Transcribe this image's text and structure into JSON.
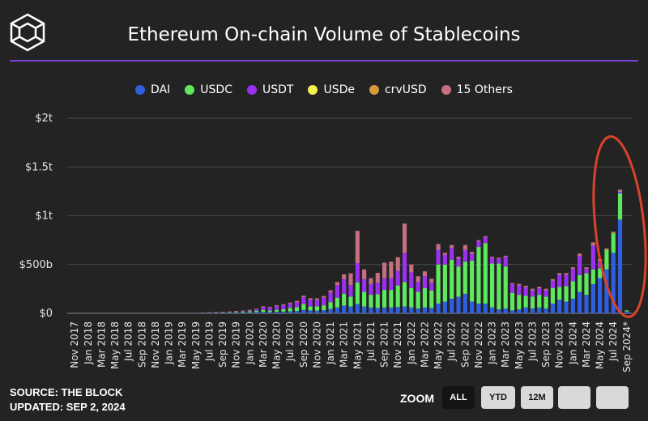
{
  "header": {
    "title": "Ethereum On-chain Volume of Stablecoins",
    "logo": "the-block-cube-logo"
  },
  "footer": {
    "source": "SOURCE: THE BLOCK",
    "updated": "UPDATED: SEP 2, 2024"
  },
  "zoom": {
    "label": "ZOOM",
    "buttons": [
      {
        "label": "ALL",
        "active": true
      },
      {
        "label": "YTD",
        "active": false
      },
      {
        "label": "12M",
        "active": false
      },
      {
        "label": "",
        "active": false
      },
      {
        "label": "",
        "active": false
      }
    ]
  },
  "chart_data": {
    "type": "bar",
    "stacked": true,
    "legend_position": "top-center",
    "grid": true,
    "ylim": [
      0,
      2000000000000
    ],
    "yticks": [
      {
        "value": 0,
        "label": "$0"
      },
      {
        "value": 500000000000,
        "label": "$500b"
      },
      {
        "value": 1000000000000,
        "label": "$1t"
      },
      {
        "value": 1500000000000,
        "label": "$1.5t"
      },
      {
        "value": 2000000000000,
        "label": "$2t"
      }
    ],
    "xtick_labels": [
      "Nov 2017",
      "Jan 2018",
      "Mar 2018",
      "May 2018",
      "Jul 2018",
      "Sep 2018",
      "Nov 2018",
      "Jan 2019",
      "Mar 2019",
      "May 2019",
      "Jul 2019",
      "Sep 2019",
      "Nov 2019",
      "Jan 2020",
      "Mar 2020",
      "May 2020",
      "Jul 2020",
      "Sep 2020",
      "Nov 2020",
      "Jan 2021",
      "Mar 2021",
      "May 2021",
      "Jul 2021",
      "Sep 2021",
      "Nov 2021",
      "Jan 2022",
      "Mar 2022",
      "May 2022",
      "Jul 2022",
      "Sep 2022",
      "Nov 2022",
      "Jan 2023",
      "Mar 2023",
      "May 2023",
      "Jul 2023",
      "Sep 2023",
      "Nov 2023",
      "Jan 2024",
      "Mar 2024",
      "May 2024",
      "Jul 2024",
      "Sep 2024*"
    ],
    "categories": [
      "Nov 2017",
      "Dec 2017",
      "Jan 2018",
      "Feb 2018",
      "Mar 2018",
      "Apr 2018",
      "May 2018",
      "Jun 2018",
      "Jul 2018",
      "Aug 2018",
      "Sep 2018",
      "Oct 2018",
      "Nov 2018",
      "Dec 2018",
      "Jan 2019",
      "Feb 2019",
      "Mar 2019",
      "Apr 2019",
      "May 2019",
      "Jun 2019",
      "Jul 2019",
      "Aug 2019",
      "Sep 2019",
      "Oct 2019",
      "Nov 2019",
      "Dec 2019",
      "Jan 2020",
      "Feb 2020",
      "Mar 2020",
      "Apr 2020",
      "May 2020",
      "Jun 2020",
      "Jul 2020",
      "Aug 2020",
      "Sep 2020",
      "Oct 2020",
      "Nov 2020",
      "Dec 2020",
      "Jan 2021",
      "Feb 2021",
      "Mar 2021",
      "Apr 2021",
      "May 2021",
      "Jun 2021",
      "Jul 2021",
      "Aug 2021",
      "Sep 2021",
      "Oct 2021",
      "Nov 2021",
      "Dec 2021",
      "Jan 2022",
      "Feb 2022",
      "Mar 2022",
      "Apr 2022",
      "May 2022",
      "Jun 2022",
      "Jul 2022",
      "Aug 2022",
      "Sep 2022",
      "Oct 2022",
      "Nov 2022",
      "Dec 2022",
      "Jan 2023",
      "Feb 2023",
      "Mar 2023",
      "Apr 2023",
      "May 2023",
      "Jun 2023",
      "Jul 2023",
      "Aug 2023",
      "Sep 2023",
      "Oct 2023",
      "Nov 2023",
      "Dec 2023",
      "Jan 2024",
      "Feb 2024",
      "Mar 2024",
      "Apr 2024",
      "May 2024",
      "Jun 2024",
      "Jul 2024",
      "Aug 2024",
      "Sep 2024*"
    ],
    "series": [
      {
        "name": "DAI",
        "color": "#2f5fe0",
        "values": [
          0,
          0,
          0,
          0,
          0,
          0,
          0,
          0,
          0,
          0,
          0,
          0,
          0,
          0,
          0,
          0,
          0,
          0,
          0.002,
          0.002,
          0.003,
          0.003,
          0.005,
          0.005,
          0.007,
          0.008,
          0.01,
          0.012,
          0.015,
          0.013,
          0.016,
          0.018,
          0.02,
          0.025,
          0.035,
          0.03,
          0.028,
          0.032,
          0.045,
          0.06,
          0.08,
          0.07,
          0.095,
          0.07,
          0.06,
          0.055,
          0.06,
          0.06,
          0.065,
          0.07,
          0.06,
          0.05,
          0.06,
          0.055,
          0.1,
          0.12,
          0.15,
          0.17,
          0.2,
          0.12,
          0.1,
          0.1,
          0.06,
          0.04,
          0.05,
          0.03,
          0.04,
          0.06,
          0.05,
          0.06,
          0.05,
          0.1,
          0.14,
          0.12,
          0.15,
          0.22,
          0.19,
          0.3,
          0.36,
          0.45,
          0.62,
          0.96,
          0.02
        ]
      },
      {
        "name": "USDC",
        "color": "#5ee85e",
        "values": [
          0,
          0,
          0,
          0,
          0,
          0,
          0,
          0,
          0,
          0,
          0,
          0,
          0,
          0,
          0,
          0,
          0,
          0,
          0.001,
          0.002,
          0.003,
          0.004,
          0.005,
          0.006,
          0.008,
          0.01,
          0.012,
          0.015,
          0.02,
          0.015,
          0.02,
          0.025,
          0.035,
          0.04,
          0.06,
          0.04,
          0.045,
          0.05,
          0.07,
          0.1,
          0.12,
          0.1,
          0.22,
          0.15,
          0.13,
          0.14,
          0.18,
          0.18,
          0.22,
          0.25,
          0.2,
          0.17,
          0.2,
          0.18,
          0.4,
          0.38,
          0.4,
          0.31,
          0.33,
          0.42,
          0.58,
          0.62,
          0.45,
          0.47,
          0.43,
          0.18,
          0.15,
          0.12,
          0.12,
          0.13,
          0.12,
          0.16,
          0.13,
          0.16,
          0.18,
          0.17,
          0.22,
          0.15,
          0.1,
          0.2,
          0.2,
          0.27,
          0.01
        ]
      },
      {
        "name": "USDT",
        "color": "#9b30f0",
        "values": [
          0,
          0,
          0,
          0,
          0,
          0,
          0,
          0,
          0,
          0,
          0,
          0,
          0,
          0,
          0,
          0,
          0,
          0,
          0.001,
          0.002,
          0.002,
          0.003,
          0.004,
          0.005,
          0.006,
          0.007,
          0.01,
          0.015,
          0.03,
          0.03,
          0.04,
          0.04,
          0.045,
          0.05,
          0.07,
          0.07,
          0.065,
          0.08,
          0.1,
          0.13,
          0.15,
          0.12,
          0.2,
          0.13,
          0.11,
          0.12,
          0.12,
          0.12,
          0.15,
          0.3,
          0.16,
          0.1,
          0.12,
          0.08,
          0.15,
          0.1,
          0.12,
          0.08,
          0.12,
          0.07,
          0.06,
          0.06,
          0.06,
          0.05,
          0.1,
          0.09,
          0.1,
          0.09,
          0.07,
          0.07,
          0.07,
          0.08,
          0.13,
          0.12,
          0.13,
          0.2,
          0.05,
          0.25,
          0.08,
          0.0,
          0.0,
          0.02,
          0.0
        ]
      },
      {
        "name": "USDe",
        "color": "#f2f24a",
        "values": [
          0,
          0,
          0,
          0,
          0,
          0,
          0,
          0,
          0,
          0,
          0,
          0,
          0,
          0,
          0,
          0,
          0,
          0,
          0,
          0,
          0,
          0,
          0,
          0,
          0,
          0,
          0,
          0,
          0,
          0,
          0,
          0,
          0,
          0,
          0,
          0,
          0,
          0,
          0,
          0,
          0,
          0,
          0,
          0,
          0,
          0,
          0,
          0,
          0,
          0,
          0,
          0,
          0,
          0,
          0,
          0,
          0,
          0,
          0,
          0,
          0,
          0,
          0,
          0,
          0,
          0,
          0,
          0,
          0,
          0,
          0,
          0,
          0,
          0,
          0,
          0,
          0,
          0.005,
          0.005,
          0.005,
          0.005,
          0.005,
          0
        ]
      },
      {
        "name": "crvUSD",
        "color": "#d69a3a",
        "values": [
          0,
          0,
          0,
          0,
          0,
          0,
          0,
          0,
          0,
          0,
          0,
          0,
          0,
          0,
          0,
          0,
          0,
          0,
          0,
          0,
          0,
          0,
          0,
          0,
          0,
          0,
          0,
          0,
          0,
          0,
          0,
          0,
          0,
          0,
          0,
          0,
          0,
          0,
          0,
          0,
          0,
          0,
          0,
          0,
          0,
          0,
          0,
          0,
          0,
          0,
          0,
          0,
          0,
          0,
          0,
          0,
          0,
          0,
          0,
          0,
          0,
          0,
          0,
          0,
          0,
          0,
          0.002,
          0.002,
          0.002,
          0.002,
          0.002,
          0.002,
          0.002,
          0.002,
          0.002,
          0.002,
          0.002,
          0.002,
          0.002,
          0.002,
          0.002,
          0.002,
          0
        ]
      },
      {
        "name": "15 Others",
        "color": "#c47080",
        "values": [
          0,
          0,
          0,
          0,
          0,
          0,
          0,
          0,
          0,
          0,
          0,
          0,
          0,
          0,
          0,
          0,
          0,
          0,
          0.001,
          0.001,
          0.002,
          0.002,
          0.002,
          0.003,
          0.003,
          0.003,
          0.004,
          0.005,
          0.008,
          0.007,
          0.008,
          0.01,
          0.01,
          0.012,
          0.015,
          0.015,
          0.015,
          0.015,
          0.02,
          0.03,
          0.05,
          0.12,
          0.33,
          0.1,
          0.06,
          0.1,
          0.16,
          0.17,
          0.14,
          0.3,
          0.08,
          0.06,
          0.05,
          0.04,
          0.06,
          0.02,
          0.03,
          0.02,
          0.05,
          0.02,
          0.01,
          0.01,
          0.01,
          0.01,
          0.01,
          0.01,
          0.01,
          0.01,
          0.01,
          0.01,
          0.01,
          0.01,
          0.01,
          0.01,
          0.01,
          0.02,
          0.01,
          0.02,
          0.01,
          0.01,
          0.01,
          0.01,
          0
        ]
      }
    ],
    "values_unit": "trillions USD",
    "annotation": "red-ellipse-highlight-2024"
  }
}
